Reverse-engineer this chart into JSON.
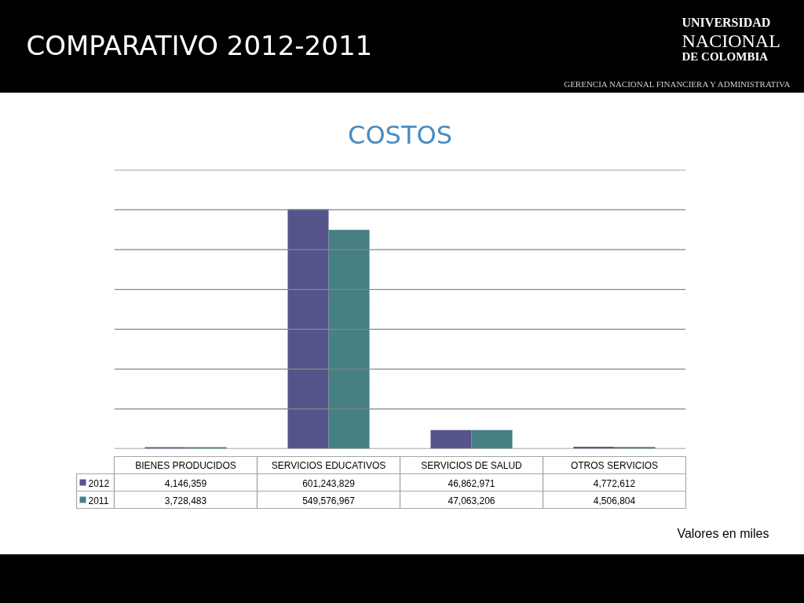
{
  "chart_data": {
    "type": "bar",
    "title": "COMPARATIVO 2012-2011",
    "subtitle": "COSTOS",
    "annotations": [
      "UNIVERSIDAD",
      "NACIONAL",
      "DE COLOMBIA",
      "GERENCIA NACIONAL FINANCIERA Y ADMINISTRATIVA",
      "Valores en miles"
    ],
    "categories": [
      "BIENES PRODUCIDOS",
      "SERVICIOS EDUCATIVOS",
      "SERVICIOS DE SALUD",
      "OTROS SERVICIOS"
    ],
    "series": [
      {
        "name": "2012",
        "color": "#54548a",
        "values": [
          4146359,
          601243829,
          46862971,
          4772612
        ],
        "value_labels": [
          "4,146,359",
          "601,243,829",
          "46,862,971",
          "4,772,612"
        ]
      },
      {
        "name": "2011",
        "color": "#468084",
        "values": [
          3728483,
          549576967,
          47063206,
          4506804
        ],
        "value_labels": [
          "3,728,483",
          "549,576,967",
          "47,063,206",
          "4,506,804"
        ]
      }
    ],
    "ylim": [
      0,
      700000000
    ],
    "yticks": [
      {
        "value": 0,
        "label": null
      },
      {
        "value": 100000000,
        "label": null
      },
      {
        "value": 200000000,
        "label": null
      },
      {
        "value": 300000000,
        "label": null
      },
      {
        "value": 400000000,
        "label": null
      },
      {
        "value": 500000000,
        "label": null
      },
      {
        "value": 600000000,
        "label": null
      },
      {
        "value": 700000000,
        "label": null
      }
    ],
    "grid": "y",
    "legend": "bottom",
    "tick_labels": "x"
  }
}
